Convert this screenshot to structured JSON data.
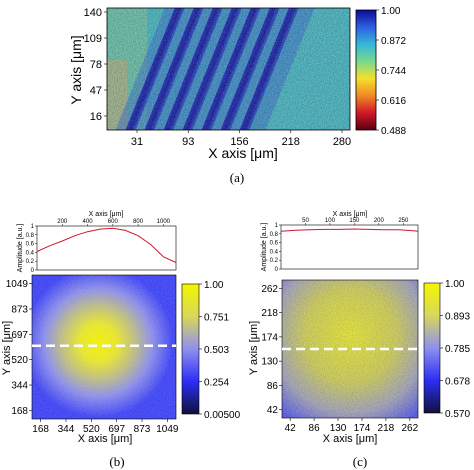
{
  "chart_data": [
    {
      "id": "a",
      "type": "heatmap",
      "caption": "(a)",
      "xlabel": "X axis [μm]",
      "ylabel": "Y axis [μm]",
      "x_ticks": [
        "31",
        "93",
        "156",
        "218",
        "280"
      ],
      "y_ticks": [
        "140",
        "109",
        "78",
        "47",
        "16"
      ],
      "colorbar_ticks": [
        "1.00",
        "0.872",
        "0.744",
        "0.616",
        "0.488"
      ],
      "colorbar_range": [
        0.488,
        1.0
      ],
      "colormap": [
        "#0a0a96",
        "#2f5fe0",
        "#33b8d9",
        "#78d98c",
        "#f5e02e",
        "#f08a24",
        "#d0172a",
        "#5a0010"
      ],
      "pattern": "diagonal dark-blue fringes across the central region, noisy cyan/green background, warmer speckle on the left edge"
    },
    {
      "id": "b",
      "type": "heatmap",
      "caption": "(b)",
      "xlabel": "X axis [μm]",
      "ylabel": "Y axis [μm]",
      "x_ticks": [
        "168",
        "344",
        "520",
        "697",
        "873",
        "1049"
      ],
      "y_ticks": [
        "1049",
        "873",
        "697",
        "520",
        "344",
        "168"
      ],
      "colorbar_ticks": [
        "1.00",
        "0.751",
        "0.503",
        "0.254",
        "0.00500"
      ],
      "colorbar_range": [
        0.005,
        1.0
      ],
      "colormap": [
        "#10103a",
        "#2b2ef5",
        "#8f8fef",
        "#d7d75c",
        "#f5f500"
      ],
      "dashed_line_y": 560,
      "profile": {
        "xlabel": "X axis [μm]",
        "ylabel": "Amplitude [a.u.]",
        "x_ticks": [
          200,
          400,
          600,
          800,
          1000
        ],
        "y_ticks": [
          0,
          0.2,
          0.4,
          0.6,
          0.8,
          1
        ],
        "x": [
          0,
          100,
          200,
          300,
          400,
          500,
          600,
          700,
          800,
          900,
          1000,
          1100
        ],
        "y": [
          0.42,
          0.55,
          0.66,
          0.78,
          0.87,
          0.93,
          0.95,
          0.9,
          0.78,
          0.58,
          0.3,
          0.17
        ]
      }
    },
    {
      "id": "c",
      "type": "heatmap",
      "caption": "(c)",
      "xlabel": "X axis [μm]",
      "ylabel": "Y axis [μm]",
      "x_ticks": [
        "42",
        "86",
        "130",
        "174",
        "218",
        "262"
      ],
      "y_ticks": [
        "262",
        "218",
        "174",
        "130",
        "86",
        "42"
      ],
      "colorbar_ticks": [
        "1.00",
        "0.893",
        "0.785",
        "0.678",
        "0.570"
      ],
      "colorbar_range": [
        0.57,
        1.0
      ],
      "colormap": [
        "#10103a",
        "#2b2ef5",
        "#8f8fef",
        "#d7d75c",
        "#f5f500"
      ],
      "dashed_line_y": 140,
      "profile": {
        "xlabel": "X axis [μm]",
        "ylabel": "Amplitude [a.u.]",
        "x_ticks": [
          50,
          100,
          150,
          200,
          250
        ],
        "y_ticks": [
          0,
          0.2,
          0.4,
          0.6,
          0.8,
          1
        ],
        "x": [
          0,
          30,
          60,
          90,
          120,
          150,
          180,
          210,
          240,
          270,
          280
        ],
        "y": [
          0.86,
          0.88,
          0.89,
          0.9,
          0.9,
          0.91,
          0.9,
          0.89,
          0.89,
          0.87,
          0.86
        ]
      }
    }
  ]
}
